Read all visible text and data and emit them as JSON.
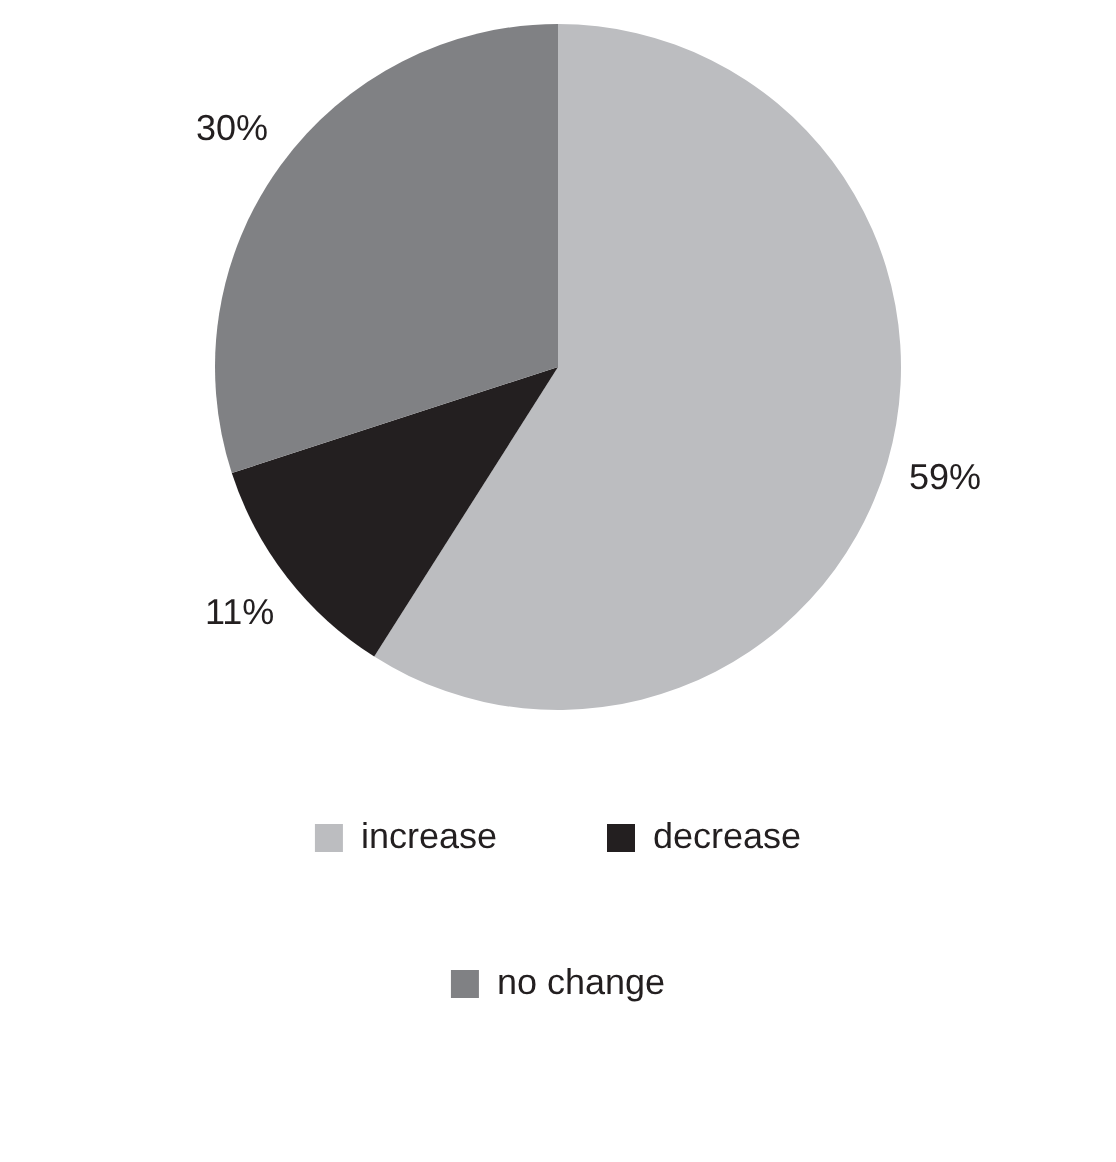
{
  "chart_data": {
    "type": "pie",
    "categories": [
      "increase",
      "decrease",
      "no change"
    ],
    "values": [
      59,
      11,
      30
    ],
    "colors": [
      "#bcbdc0",
      "#231f20",
      "#808184"
    ],
    "value_labels": [
      "59%",
      "11%",
      "30%"
    ],
    "legend": "bottom"
  }
}
